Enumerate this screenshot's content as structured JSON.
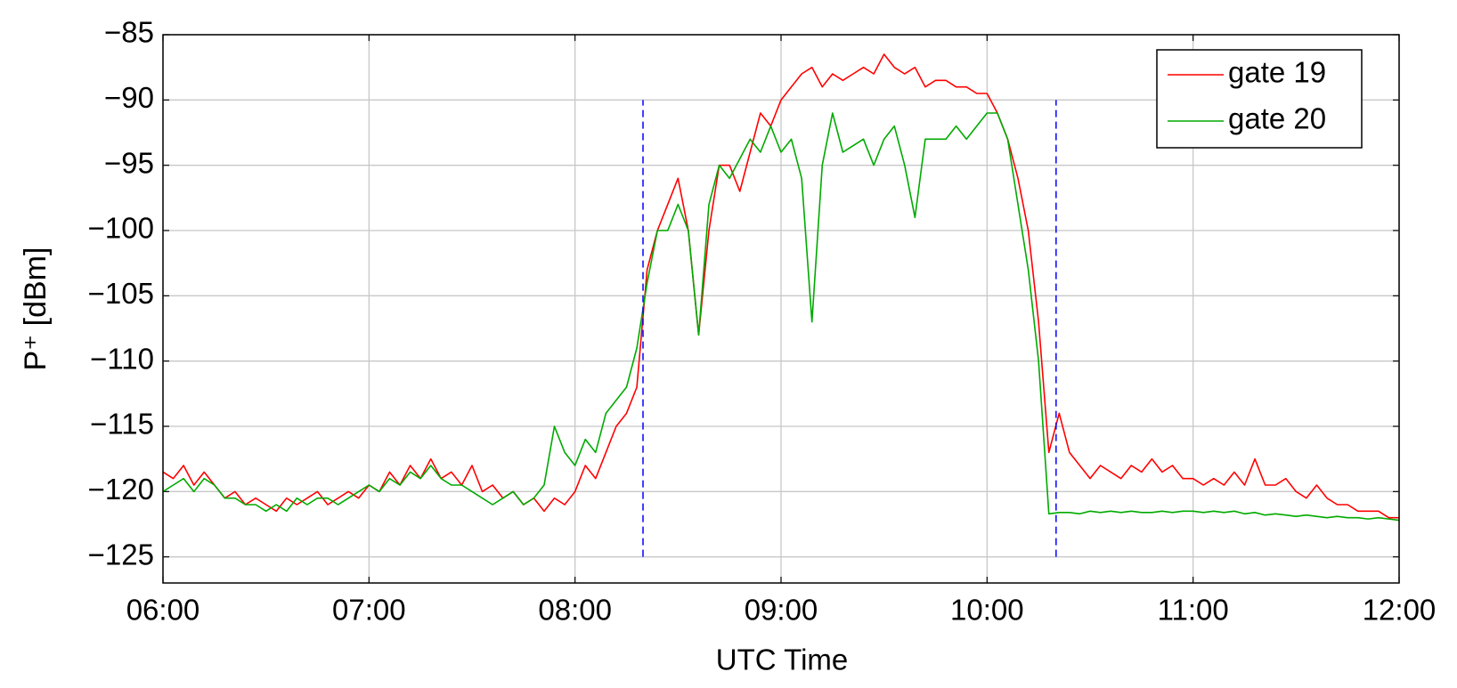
{
  "chart_data": {
    "type": "line",
    "x_label": "UTC Time",
    "y_label": "P⁺ [dBm]",
    "x": [
      6.0,
      6.05,
      6.1,
      6.15,
      6.2,
      6.25,
      6.3,
      6.35,
      6.4,
      6.45,
      6.5,
      6.55,
      6.6,
      6.65,
      6.7,
      6.75,
      6.8,
      6.85,
      6.9,
      6.95,
      7.0,
      7.05,
      7.1,
      7.15,
      7.2,
      7.25,
      7.3,
      7.35,
      7.4,
      7.45,
      7.5,
      7.55,
      7.6,
      7.65,
      7.7,
      7.75,
      7.8,
      7.85,
      7.9,
      7.95,
      8.0,
      8.05,
      8.1,
      8.15,
      8.2,
      8.25,
      8.3,
      8.35,
      8.4,
      8.45,
      8.5,
      8.55,
      8.6,
      8.65,
      8.7,
      8.75,
      8.8,
      8.85,
      8.9,
      8.95,
      9.0,
      9.05,
      9.1,
      9.15,
      9.2,
      9.25,
      9.3,
      9.35,
      9.4,
      9.45,
      9.5,
      9.55,
      9.6,
      9.65,
      9.7,
      9.75,
      9.8,
      9.85,
      9.9,
      9.95,
      10.0,
      10.05,
      10.1,
      10.15,
      10.2,
      10.25,
      10.3,
      10.35,
      10.4,
      10.45,
      10.5,
      10.55,
      10.6,
      10.65,
      10.7,
      10.75,
      10.8,
      10.85,
      10.9,
      10.95,
      11.0,
      11.05,
      11.1,
      11.15,
      11.2,
      11.25,
      11.3,
      11.35,
      11.4,
      11.45,
      11.5,
      11.55,
      11.6,
      11.65,
      11.7,
      11.75,
      11.8,
      11.85,
      11.9,
      11.95,
      12.0
    ],
    "series": [
      {
        "name": "gate 19",
        "color": "#ff0000",
        "values": [
          -118.5,
          -119,
          -118,
          -119.5,
          -118.5,
          -119.5,
          -120.5,
          -120,
          -121,
          -120.5,
          -121,
          -121.5,
          -120.5,
          -121,
          -120.5,
          -120,
          -121,
          -120.5,
          -120,
          -120.5,
          -119.5,
          -120,
          -118.5,
          -119.5,
          -118,
          -119,
          -117.5,
          -119,
          -118.5,
          -119.5,
          -118,
          -120,
          -119.5,
          -120.5,
          -120,
          -121,
          -120.5,
          -121.5,
          -120.5,
          -121,
          -120,
          -118,
          -119,
          -117,
          -115,
          -114,
          -112,
          -103,
          -100,
          -98,
          -96,
          -100,
          -108,
          -100,
          -95,
          -95,
          -97,
          -94,
          -91,
          -92,
          -90,
          -89,
          -88,
          -87.5,
          -89,
          -88,
          -88.5,
          -88,
          -87.5,
          -88,
          -86.5,
          -87.5,
          -88,
          -87.5,
          -89,
          -88.5,
          -88.5,
          -89,
          -89,
          -89.5,
          -89.5,
          -91,
          -93,
          -96,
          -100,
          -107,
          -117,
          -114,
          -117,
          -118,
          -119,
          -118,
          -118.5,
          -119,
          -118,
          -118.5,
          -117.5,
          -118.5,
          -118,
          -119,
          -119,
          -119.5,
          -119,
          -119.5,
          -118.5,
          -119.5,
          -117.5,
          -119.5,
          -119.5,
          -119,
          -120,
          -120.5,
          -119.5,
          -120.5,
          -121,
          -121,
          -121.5,
          -121.5,
          -121.5,
          -122,
          -122
        ]
      },
      {
        "name": "gate 20",
        "color": "#00aa00",
        "values": [
          -120,
          -119.5,
          -119,
          -120,
          -119,
          -119.5,
          -120.5,
          -120.5,
          -121,
          -121,
          -121.5,
          -121,
          -121.5,
          -120.5,
          -121,
          -120.5,
          -120.5,
          -121,
          -120.5,
          -120,
          -119.5,
          -120,
          -119,
          -119.5,
          -118.5,
          -119,
          -118,
          -119,
          -119.5,
          -119.5,
          -120,
          -120.5,
          -121,
          -120.5,
          -120,
          -121,
          -120.5,
          -119.5,
          -115,
          -117,
          -118,
          -116,
          -117,
          -114,
          -113,
          -112,
          -109,
          -104,
          -100,
          -100,
          -98,
          -100,
          -108,
          -98,
          -95,
          -96,
          -94.5,
          -93,
          -94,
          -92,
          -94,
          -93,
          -96,
          -107,
          -95,
          -91,
          -94,
          -93.5,
          -93,
          -95,
          -93,
          -92,
          -95,
          -99,
          -93,
          -93,
          -93,
          -92,
          -93,
          -92,
          -91,
          -91,
          -93,
          -98,
          -103,
          -110,
          -121.7,
          -121.6,
          -121.6,
          -121.7,
          -121.5,
          -121.6,
          -121.5,
          -121.6,
          -121.5,
          -121.6,
          -121.6,
          -121.5,
          -121.6,
          -121.5,
          -121.5,
          -121.6,
          -121.5,
          -121.6,
          -121.5,
          -121.7,
          -121.6,
          -121.8,
          -121.7,
          -121.8,
          -121.9,
          -121.8,
          -121.9,
          -122,
          -121.9,
          -122,
          -122,
          -122.1,
          -122,
          -122.1,
          -122.2
        ]
      }
    ],
    "xlim": [
      6,
      12
    ],
    "xticks": [
      {
        "value": 6,
        "label": "06:00"
      },
      {
        "value": 7,
        "label": "07:00"
      },
      {
        "value": 8,
        "label": "08:00"
      },
      {
        "value": 9,
        "label": "09:00"
      },
      {
        "value": 10,
        "label": "10:00"
      },
      {
        "value": 11,
        "label": "11:00"
      },
      {
        "value": 12,
        "label": "12:00"
      }
    ],
    "ylim": [
      -127,
      -85
    ],
    "yticks": [
      {
        "value": -85,
        "label": "−85"
      },
      {
        "value": -90,
        "label": "−90"
      },
      {
        "value": -95,
        "label": "−95"
      },
      {
        "value": -100,
        "label": "−100"
      },
      {
        "value": -105,
        "label": "−105"
      },
      {
        "value": -110,
        "label": "−110"
      },
      {
        "value": -115,
        "label": "−115"
      },
      {
        "value": -120,
        "label": "−120"
      },
      {
        "value": -125,
        "label": "−125"
      }
    ],
    "vlines": {
      "x": [
        8.33,
        10.335
      ],
      "ylim": [
        -125,
        -90
      ],
      "color": "#0000ff"
    },
    "grid": true,
    "legend": "top-right"
  }
}
